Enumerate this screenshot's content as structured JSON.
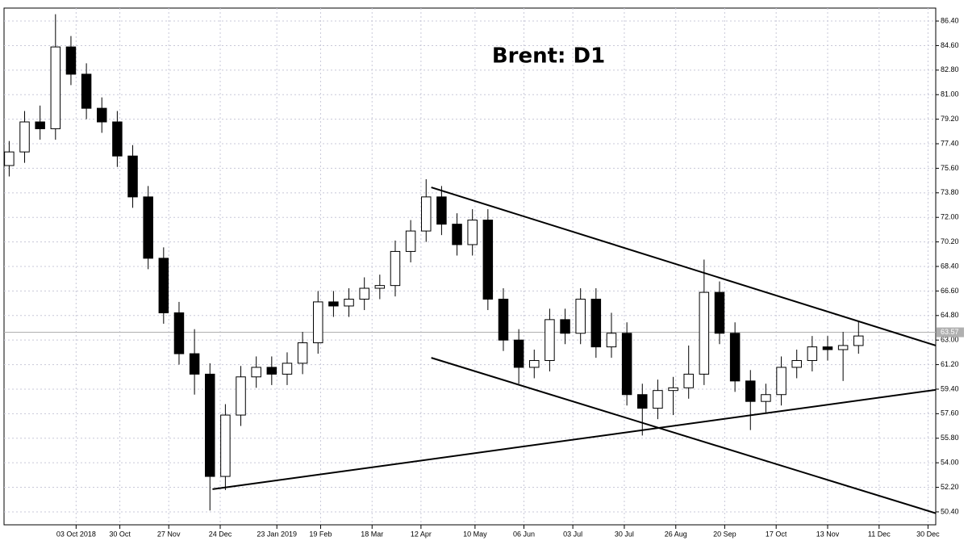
{
  "chart_data": {
    "type": "candlestick",
    "title": "Brent: D1",
    "x": [
      0,
      6,
      12,
      18,
      24,
      30,
      36,
      42,
      48,
      54,
      60,
      66,
      72,
      78,
      84,
      90,
      96,
      102,
      108,
      114,
      120,
      126,
      132,
      138,
      144,
      150,
      156,
      162,
      168,
      174,
      180,
      186,
      192,
      198,
      204,
      210,
      216,
      222,
      228,
      234,
      240,
      246,
      252,
      258,
      264,
      270,
      276,
      282,
      288,
      294,
      300,
      306,
      312,
      318,
      324,
      330
    ],
    "open": [
      75.8,
      76.8,
      79.0,
      78.5,
      84.5,
      82.5,
      80.0,
      79.0,
      76.5,
      73.5,
      69.0,
      65.0,
      62.0,
      60.5,
      53.0,
      57.5,
      60.3,
      61.0,
      60.5,
      61.3,
      62.8,
      65.8,
      65.5,
      66.0,
      66.8,
      67.0,
      69.5,
      71.0,
      73.5,
      71.5,
      70.0,
      71.8,
      66.0,
      63.0,
      61.0,
      61.5,
      64.5,
      63.5,
      66.0,
      62.5,
      63.5,
      59.0,
      58.0,
      59.3,
      59.5,
      60.5,
      66.5,
      63.5,
      60.0,
      58.5,
      59.0,
      61.0,
      61.5,
      62.5,
      62.3,
      62.6
    ],
    "high": [
      77.6,
      79.8,
      80.2,
      86.9,
      85.3,
      83.3,
      80.8,
      79.8,
      77.3,
      74.3,
      69.8,
      65.8,
      63.8,
      61.3,
      58.3,
      61.1,
      61.8,
      61.8,
      62.1,
      63.6,
      66.6,
      66.6,
      66.8,
      67.6,
      67.8,
      70.3,
      71.8,
      74.8,
      74.3,
      72.3,
      72.6,
      72.6,
      66.8,
      63.8,
      62.3,
      65.3,
      65.3,
      66.8,
      66.8,
      65.0,
      64.3,
      59.8,
      60.1,
      60.3,
      62.6,
      68.9,
      67.3,
      64.3,
      60.8,
      59.8,
      61.8,
      62.3,
      63.3,
      63.3,
      63.6,
      64.4
    ],
    "low": [
      75.0,
      76.0,
      77.7,
      77.7,
      81.7,
      79.2,
      78.2,
      75.7,
      72.7,
      68.2,
      64.2,
      61.2,
      59.0,
      50.5,
      52.0,
      56.7,
      59.5,
      59.7,
      59.7,
      60.5,
      62.0,
      64.7,
      64.7,
      65.2,
      66.0,
      66.2,
      68.7,
      70.2,
      70.7,
      69.2,
      69.2,
      65.2,
      62.2,
      59.8,
      60.2,
      60.7,
      62.7,
      62.7,
      61.7,
      61.7,
      58.2,
      56.0,
      57.2,
      57.5,
      58.7,
      59.7,
      62.7,
      59.2,
      56.4,
      57.7,
      58.2,
      60.2,
      60.7,
      61.5,
      60.0,
      62.0
    ],
    "close": [
      76.8,
      79.0,
      78.5,
      84.5,
      82.5,
      80.0,
      79.0,
      76.5,
      73.5,
      69.0,
      65.0,
      62.0,
      60.5,
      53.0,
      57.5,
      60.3,
      61.0,
      60.5,
      61.3,
      62.8,
      65.8,
      65.5,
      66.0,
      66.8,
      67.0,
      69.5,
      71.0,
      73.5,
      71.5,
      70.0,
      71.8,
      66.0,
      63.0,
      61.0,
      61.5,
      64.5,
      63.5,
      66.0,
      62.5,
      63.5,
      59.0,
      58.0,
      59.3,
      59.5,
      60.5,
      66.5,
      63.5,
      60.0,
      58.5,
      59.0,
      61.0,
      61.5,
      62.5,
      62.3,
      62.6,
      63.3
    ],
    "up_color": "#ffffff",
    "down_color": "#000000",
    "xlim": [
      -2,
      360
    ],
    "ylim": [
      49.45,
      87.35
    ],
    "xticks": [
      {
        "value": 26,
        "label": "03 Oct 2018"
      },
      {
        "value": 43,
        "label": "30 Oct"
      },
      {
        "value": 62,
        "label": "27 Nov"
      },
      {
        "value": 82,
        "label": "24 Dec"
      },
      {
        "value": 104,
        "label": "23 Jan 2019"
      },
      {
        "value": 121,
        "label": "19 Feb"
      },
      {
        "value": 141,
        "label": "18 Mar"
      },
      {
        "value": 160,
        "label": "12 Apr"
      },
      {
        "value": 181,
        "label": "10 May"
      },
      {
        "value": 200,
        "label": "06 Jun"
      },
      {
        "value": 219,
        "label": "03 Jul"
      },
      {
        "value": 239,
        "label": "30 Jul"
      },
      {
        "value": 259,
        "label": "26 Aug"
      },
      {
        "value": 278,
        "label": "20 Sep"
      },
      {
        "value": 298,
        "label": "17 Oct"
      },
      {
        "value": 318,
        "label": "13 Nov"
      },
      {
        "value": 338,
        "label": "11 Dec"
      },
      {
        "value": 357,
        "label": "30 Dec"
      }
    ],
    "yticks": [
      {
        "value": 86.4,
        "label": "86.40"
      },
      {
        "value": 84.6,
        "label": "84.60"
      },
      {
        "value": 82.8,
        "label": "82.80"
      },
      {
        "value": 81,
        "label": "81.00"
      },
      {
        "value": 79.2,
        "label": "79.20"
      },
      {
        "value": 77.4,
        "label": "77.40"
      },
      {
        "value": 75.6,
        "label": "75.60"
      },
      {
        "value": 73.8,
        "label": "73.80"
      },
      {
        "value": 72,
        "label": "72.00"
      },
      {
        "value": 70.2,
        "label": "70.20"
      },
      {
        "value": 68.4,
        "label": "68.40"
      },
      {
        "value": 66.6,
        "label": "66.60"
      },
      {
        "value": 64.8,
        "label": "64.80"
      },
      {
        "value": 63,
        "label": "63.00"
      },
      {
        "value": 61.2,
        "label": "61.20"
      },
      {
        "value": 59.4,
        "label": "59.40"
      },
      {
        "value": 57.6,
        "label": "57.60"
      },
      {
        "value": 55.8,
        "label": "55.80"
      },
      {
        "value": 54,
        "label": "54.00"
      },
      {
        "value": 52.2,
        "label": "52.20"
      },
      {
        "value": 50.4,
        "label": "50.40"
      }
    ],
    "last_price": {
      "value": 63.57,
      "label": "63.57"
    },
    "trend_lines": [
      {
        "x": [
          79,
          360
        ],
        "y": [
          52.06,
          59.35
        ]
      },
      {
        "x": [
          164,
          360
        ],
        "y": [
          74.2,
          62.6
        ]
      },
      {
        "x": [
          164,
          360
        ],
        "y": [
          61.7,
          50.3
        ]
      }
    ],
    "grid": true
  }
}
